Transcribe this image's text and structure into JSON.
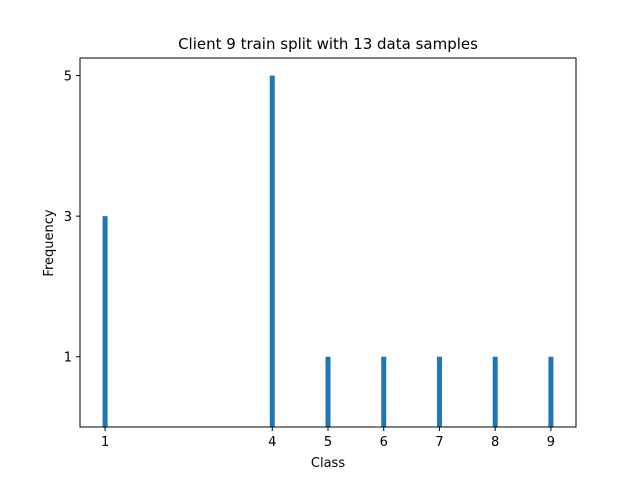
{
  "chart_data": {
    "type": "bar",
    "title": "Client 9 train split with 13 data samples",
    "xlabel": "Class",
    "ylabel": "Frequency",
    "x": [
      1,
      4,
      5,
      6,
      7,
      8,
      9
    ],
    "values": [
      3,
      5,
      1,
      1,
      1,
      1,
      1
    ],
    "xticks": [
      "1",
      "4",
      "5",
      "6",
      "7",
      "8",
      "9"
    ],
    "yticks": [
      "1",
      "3",
      "5"
    ],
    "xlim": [
      0.55,
      9.45
    ],
    "ylim": [
      0,
      5.25
    ],
    "bar_color": "#1f77b4",
    "grid": false,
    "legend": "none"
  }
}
